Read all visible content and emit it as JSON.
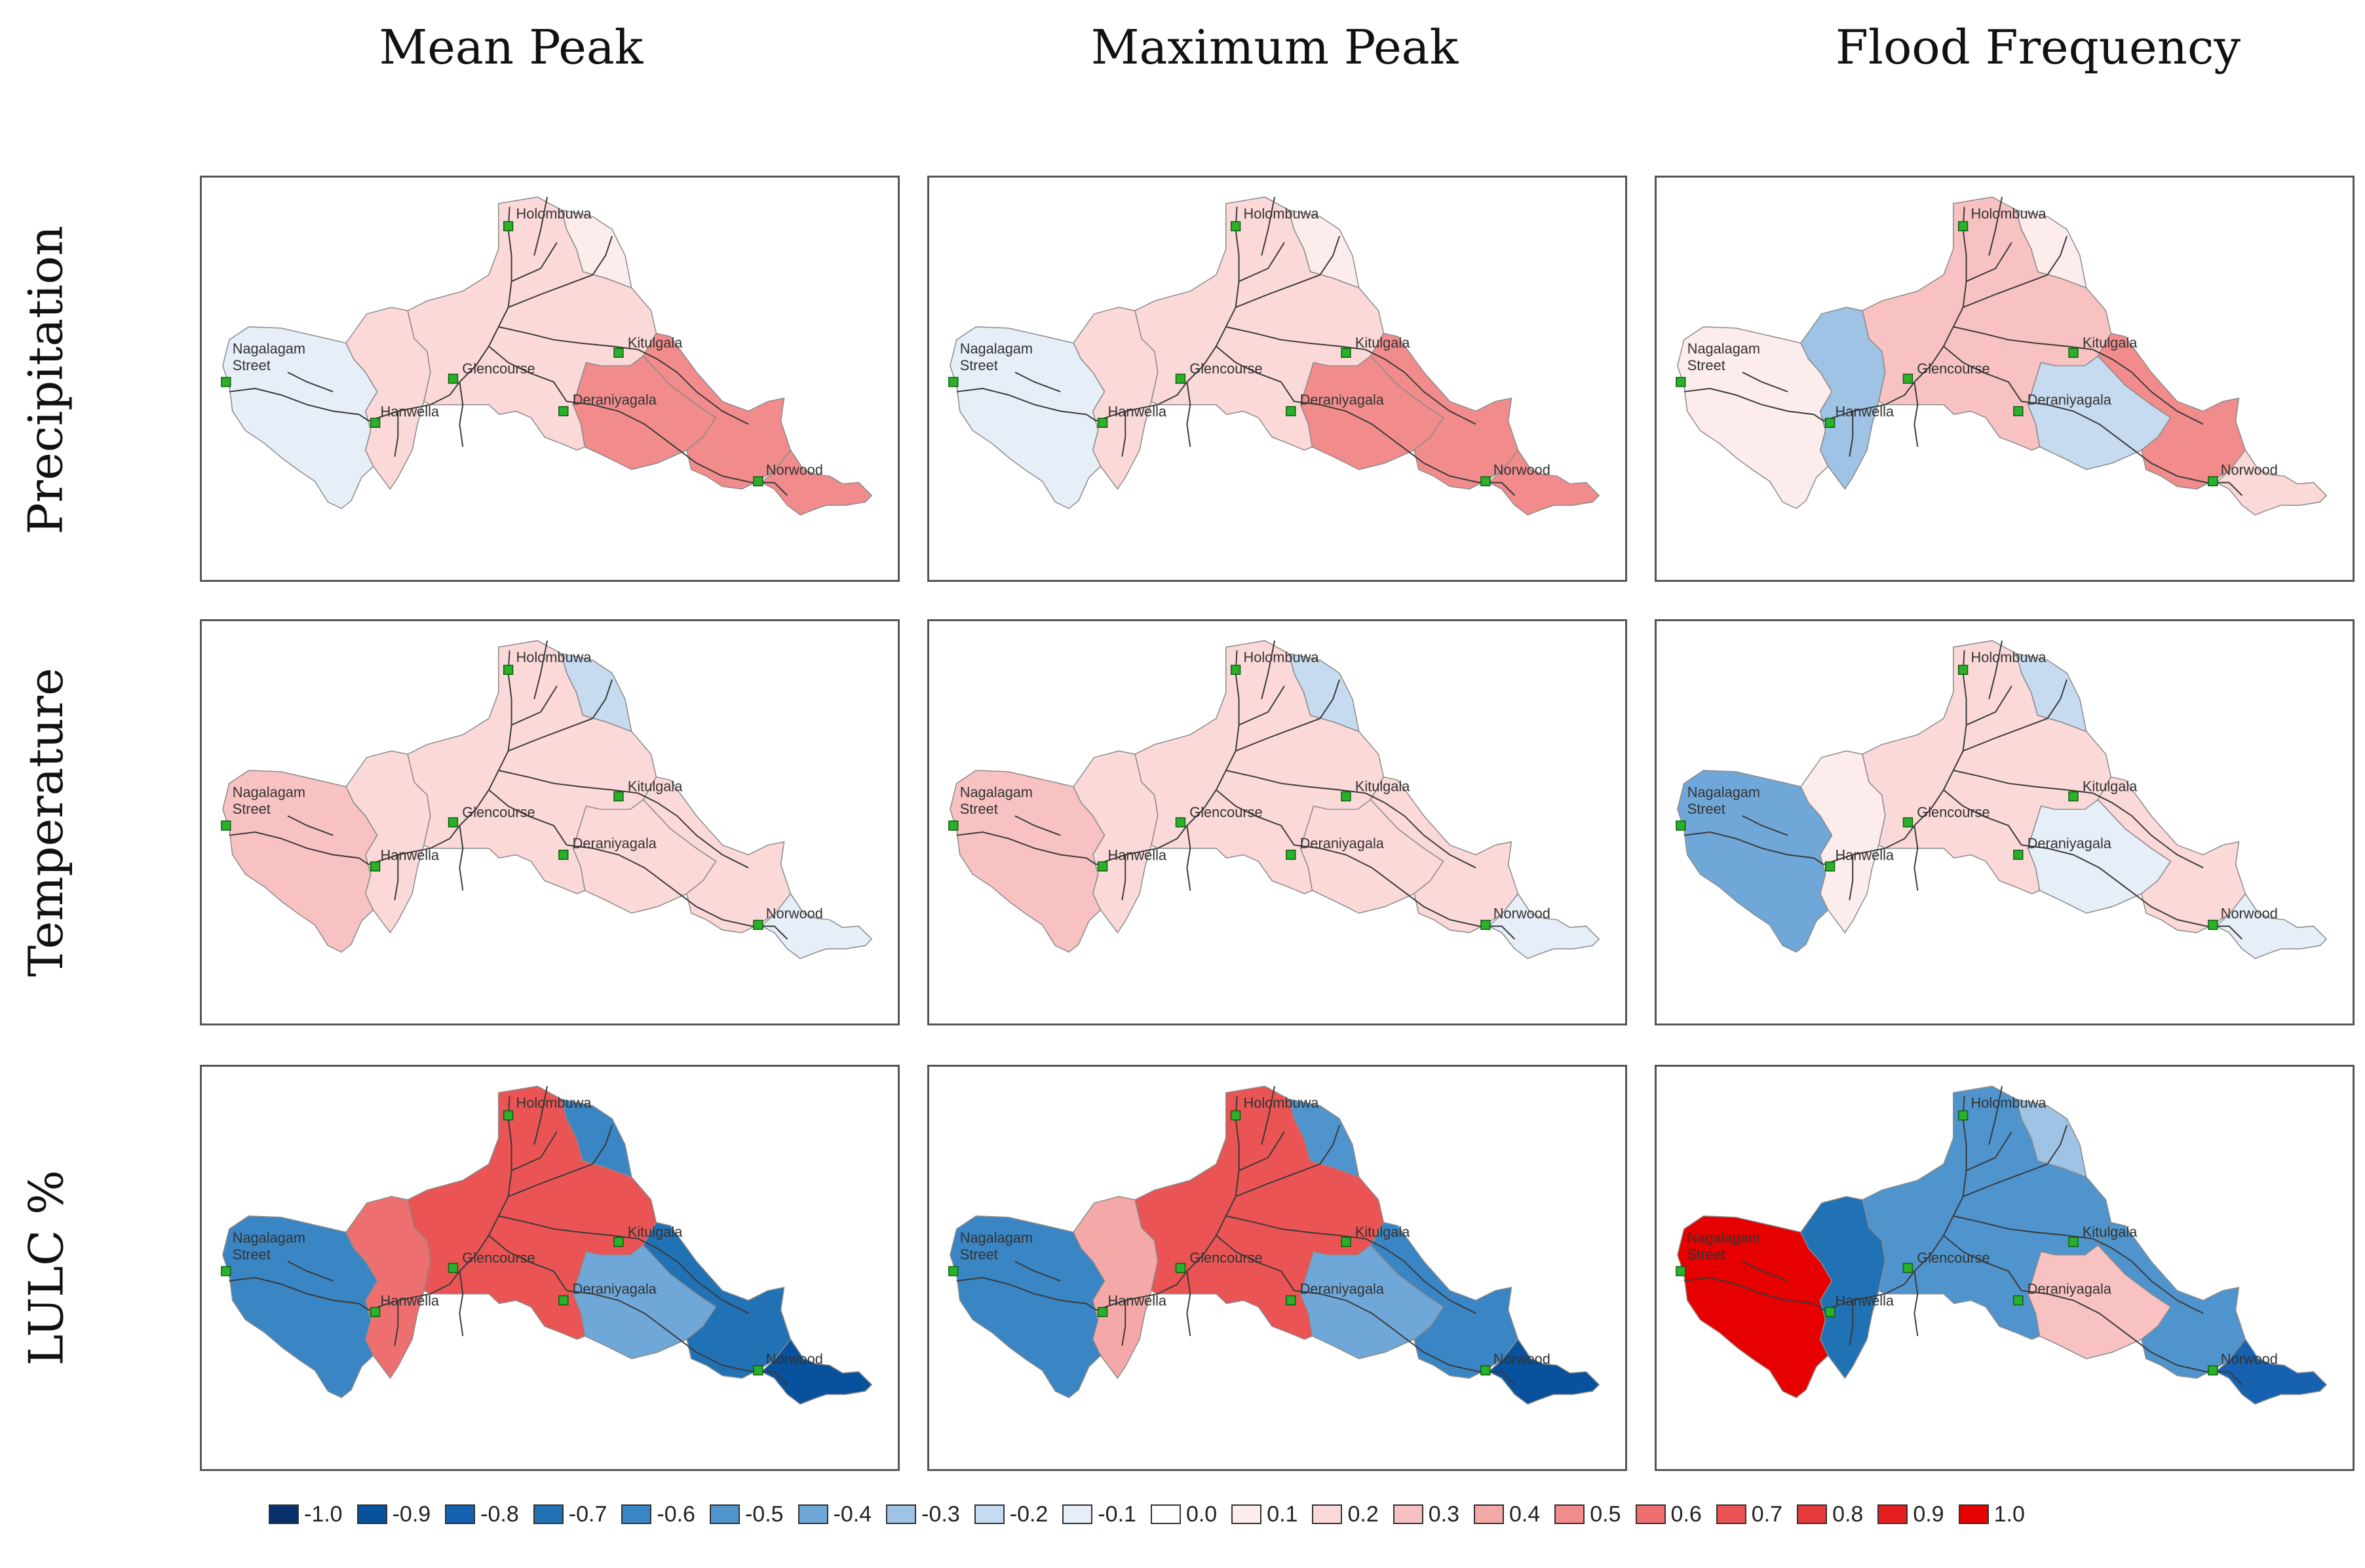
{
  "columns": [
    "Mean Peak",
    "Maximum Peak",
    "Flood Frequency"
  ],
  "rows": [
    "Precipitation",
    "Temperature",
    "LULC %"
  ],
  "stations": [
    "Holombuwa",
    "Nagalagam Street",
    "Glencourse",
    "Kitulgala",
    "Hanwella",
    "Deraniyagala",
    "Norwood"
  ],
  "legend": [
    {
      "label": "-1.0",
      "color": "#08306b"
    },
    {
      "label": "-0.9",
      "color": "#08519c"
    },
    {
      "label": "-0.8",
      "color": "#1661b0"
    },
    {
      "label": "-0.7",
      "color": "#2171b5"
    },
    {
      "label": "-0.6",
      "color": "#3a85c4"
    },
    {
      "label": "-0.5",
      "color": "#4f94cd"
    },
    {
      "label": "-0.4",
      "color": "#6fa8d8"
    },
    {
      "label": "-0.3",
      "color": "#9ec3e4"
    },
    {
      "label": "-0.2",
      "color": "#c6dbef"
    },
    {
      "label": "-0.1",
      "color": "#e6eef8"
    },
    {
      "label": "0.0",
      "color": "#ffffff"
    },
    {
      "label": "0.1",
      "color": "#fdecec"
    },
    {
      "label": "0.2",
      "color": "#fbd9d9"
    },
    {
      "label": "0.3",
      "color": "#f8c2c2"
    },
    {
      "label": "0.4",
      "color": "#f5a8a8"
    },
    {
      "label": "0.5",
      "color": "#f28c8c"
    },
    {
      "label": "0.6",
      "color": "#ee6f6f"
    },
    {
      "label": "0.7",
      "color": "#ea5454"
    },
    {
      "label": "0.8",
      "color": "#e63a3a"
    },
    {
      "label": "0.9",
      "color": "#e61e1e"
    },
    {
      "label": "1.0",
      "color": "#e60000"
    }
  ],
  "panels": [
    {
      "row": "Precipitation",
      "column": "Mean Peak",
      "values": {
        "west": -0.1,
        "hanwella": 0.2,
        "central": 0.2,
        "northeast": 0.1,
        "deraniyagala_sub": 0.5,
        "east": 0.5,
        "tail": 0.5
      }
    },
    {
      "row": "Precipitation",
      "column": "Maximum Peak",
      "values": {
        "west": -0.1,
        "hanwella": 0.2,
        "central": 0.2,
        "northeast": 0.1,
        "deraniyagala_sub": 0.5,
        "east": 0.5,
        "tail": 0.5
      }
    },
    {
      "row": "Precipitation",
      "column": "Flood Frequency",
      "values": {
        "west": 0.1,
        "hanwella": -0.3,
        "central": 0.3,
        "northeast": 0.1,
        "deraniyagala_sub": -0.2,
        "east": 0.5,
        "tail": 0.2
      }
    },
    {
      "row": "Temperature",
      "column": "Mean Peak",
      "values": {
        "west": 0.3,
        "hanwella": 0.2,
        "central": 0.2,
        "northeast": -0.2,
        "deraniyagala_sub": 0.2,
        "east": 0.2,
        "tail": -0.1
      }
    },
    {
      "row": "Temperature",
      "column": "Maximum Peak",
      "values": {
        "west": 0.3,
        "hanwella": 0.2,
        "central": 0.2,
        "northeast": -0.2,
        "deraniyagala_sub": 0.2,
        "east": 0.2,
        "tail": -0.1
      }
    },
    {
      "row": "Temperature",
      "column": "Flood Frequency",
      "values": {
        "west": -0.4,
        "hanwella": 0.1,
        "central": 0.2,
        "northeast": -0.2,
        "deraniyagala_sub": -0.1,
        "east": 0.2,
        "tail": -0.1
      }
    },
    {
      "row": "LULC %",
      "column": "Mean Peak",
      "values": {
        "west": -0.6,
        "hanwella": 0.6,
        "central": 0.7,
        "northeast": -0.6,
        "deraniyagala_sub": -0.4,
        "east": -0.7,
        "tail": -0.9
      }
    },
    {
      "row": "LULC %",
      "column": "Maximum Peak",
      "values": {
        "west": -0.6,
        "hanwella": 0.4,
        "central": 0.7,
        "northeast": -0.5,
        "deraniyagala_sub": -0.4,
        "east": -0.6,
        "tail": -0.9
      }
    },
    {
      "row": "LULC %",
      "column": "Flood Frequency",
      "values": {
        "west": 1.0,
        "hanwella": -0.7,
        "central": -0.5,
        "northeast": -0.3,
        "deraniyagala_sub": 0.3,
        "east": -0.5,
        "tail": -0.8
      }
    }
  ]
}
